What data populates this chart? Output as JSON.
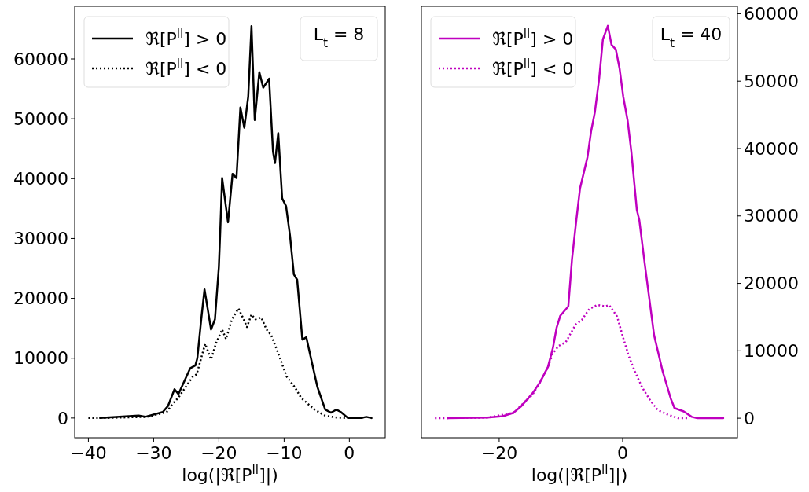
{
  "chart_data": [
    {
      "type": "line",
      "xlabel": "log(|ℜ[P$^{ll}$]|)",
      "annotations": [
        "L$_{t}$ = 8"
      ],
      "legend": "top left",
      "grid": false,
      "xlim": [
        -42.1,
        5.5
      ],
      "ylim": [
        -3300,
        68800
      ],
      "xticks": [
        {
          "value": -40,
          "label": "−40"
        },
        {
          "value": -30,
          "label": "−30"
        },
        {
          "value": -20,
          "label": "−20"
        },
        {
          "value": -10,
          "label": "−10"
        },
        0
      ],
      "yticks": [
        0,
        10000,
        20000,
        30000,
        40000,
        50000,
        60000
      ],
      "series": [
        {
          "name": "ℜ[P$^{ll}$] > 0",
          "color": "#000000",
          "line_style": "solid",
          "x": [
            -38.2,
            -32.3,
            -31.3,
            -28.6,
            -27.8,
            -26.8,
            -26.2,
            -24.4,
            -23.6,
            -23.3,
            -22.7,
            -22.2,
            -21.2,
            -20.6,
            -20.0,
            -19.8,
            -19.5,
            -18.6,
            -17.9,
            -17.3,
            -16.7,
            -16.1,
            -15.5,
            -15.0,
            -14.5,
            -13.8,
            -13.2,
            -12.3,
            -11.7,
            -11.4,
            -10.9,
            -10.3,
            -9.7,
            -9.1,
            -8.5,
            -8.0,
            -7.2,
            -6.6,
            -5.6,
            -4.9,
            -3.7,
            -2.8,
            -2.0,
            -1.3,
            -0.2,
            1.9,
            2.2,
            2.6,
            3.0,
            3.4
          ],
          "values": [
            0,
            400,
            200,
            1000,
            2000,
            4800,
            4000,
            8300,
            8800,
            10000,
            16500,
            21500,
            14800,
            16500,
            25300,
            30900,
            40100,
            32700,
            40800,
            40100,
            51900,
            48500,
            53700,
            65500,
            49800,
            57800,
            55200,
            56700,
            44500,
            42600,
            47600,
            36700,
            35400,
            30500,
            24000,
            23100,
            13100,
            13500,
            8600,
            5200,
            1400,
            900,
            1400,
            1000,
            0,
            0,
            100,
            200,
            100,
            0
          ]
        },
        {
          "name": "ℜ[P$^{ll}$] < 0",
          "color": "#000000",
          "line_style": "dotted",
          "x": [
            -40,
            -38,
            -31,
            -28,
            -27,
            -26.2,
            -24.0,
            -23.4,
            -22.1,
            -21.2,
            -20.4,
            -19.5,
            -18.9,
            -18.0,
            -17.0,
            -16.2,
            -15.7,
            -15.0,
            -14.4,
            -13.5,
            -12.7,
            -12.0,
            -10.8,
            -9.6,
            -8.4,
            -7.4,
            -6.4,
            -5.2,
            -3.7,
            -2.0,
            -0.2
          ],
          "values": [
            0,
            0,
            200,
            1000,
            2500,
            3400,
            6900,
            7300,
            12400,
            9800,
            12600,
            14800,
            13200,
            16500,
            18300,
            16500,
            15200,
            17300,
            16500,
            16800,
            14800,
            13900,
            10500,
            6900,
            5200,
            3400,
            2400,
            1300,
            400,
            100,
            0
          ]
        }
      ]
    },
    {
      "type": "line",
      "xlabel": "log(|ℜ[P$^{ll}$]|)",
      "annotations": [
        "L$_{t}$ = 40"
      ],
      "legend": "top left",
      "grid": false,
      "xlim": [
        -32.6,
        18.6
      ],
      "ylim": [
        -2900,
        61100
      ],
      "xticks": [
        {
          "value": -20,
          "label": "−20"
        },
        0
      ],
      "yticks": [
        0,
        10000,
        20000,
        30000,
        40000,
        50000,
        60000
      ],
      "series": [
        {
          "name": "ℜ[P$^{ll}$] > 0",
          "color": "#bf00bf",
          "line_style": "solid",
          "x": [
            -28.3,
            -21.9,
            -19.4,
            -17.7,
            -16.4,
            -14.6,
            -13.4,
            -12.1,
            -11.3,
            -10.7,
            -10.1,
            -8.8,
            -8.2,
            -7.5,
            -6.9,
            -5.7,
            -5.1,
            -4.5,
            -3.8,
            -3.2,
            -2.4,
            -1.8,
            -1.1,
            -0.5,
            0.1,
            0.8,
            1.4,
            2.3,
            2.7,
            3.6,
            5.1,
            6.5,
            7.8,
            8.4,
            9.9,
            11.2,
            12.1,
            16.3
          ],
          "values": [
            0,
            100,
            300,
            800,
            1800,
            3700,
            5300,
            7600,
            10400,
            13400,
            15200,
            16600,
            23600,
            29400,
            34100,
            38700,
            42600,
            45400,
            50400,
            56200,
            58200,
            55400,
            54700,
            51900,
            47700,
            44200,
            39600,
            30900,
            29400,
            22800,
            12300,
            6900,
            2900,
            1500,
            1000,
            200,
            0,
            0
          ]
        },
        {
          "name": "ℜ[P$^{ll}$] < 0",
          "color": "#bf00bf",
          "line_style": "dotted",
          "x": [
            -30.4,
            -21.9,
            -17.7,
            -14.6,
            -13.4,
            -12.1,
            -11.3,
            -10.4,
            -9.2,
            -7.6,
            -6.6,
            -5.4,
            -4.1,
            -2.8,
            -2.2,
            -0.9,
            0.1,
            1.0,
            2.0,
            3.2,
            4.5,
            5.7,
            7.4,
            9.0,
            10.8
          ],
          "values": [
            0,
            100,
            800,
            3500,
            5300,
            7600,
            9600,
            10700,
            11300,
            13900,
            14600,
            16200,
            16800,
            16600,
            16800,
            15100,
            11900,
            9200,
            6900,
            4500,
            2600,
            1200,
            500,
            0,
            0
          ]
        }
      ]
    }
  ]
}
